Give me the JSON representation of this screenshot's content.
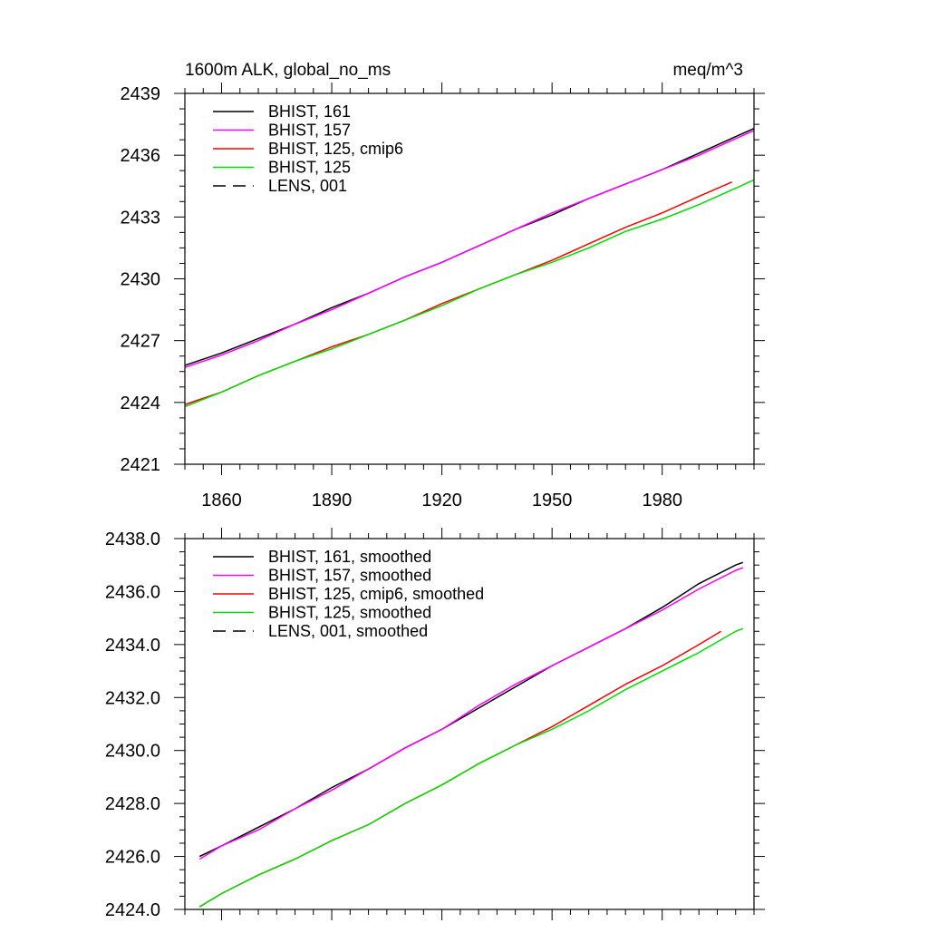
{
  "chart_data": [
    {
      "type": "line",
      "title": "1600m ALK, global_no_ms",
      "units": "meq/m^3",
      "xlabel": "",
      "ylabel": "",
      "xlim": [
        1850,
        2005
      ],
      "ylim": [
        2421,
        2439
      ],
      "xticks": [
        1860,
        1890,
        1920,
        1950,
        1980
      ],
      "xtick_labels": [
        "1860",
        "1890",
        "1920",
        "1950",
        "1980"
      ],
      "yticks": [
        2421,
        2424,
        2427,
        2430,
        2433,
        2436,
        2439
      ],
      "ytick_labels": [
        "2421",
        "2424",
        "2427",
        "2430",
        "2433",
        "2436",
        "2439"
      ],
      "grid": false,
      "legend_position": "top-left",
      "series": [
        {
          "name": "BHIST, 161",
          "color": "#000000",
          "dash": "solid",
          "x": [
            1850,
            1860,
            1870,
            1880,
            1890,
            1900,
            1910,
            1920,
            1930,
            1940,
            1950,
            1960,
            1970,
            1980,
            1990,
            2000,
            2005
          ],
          "y": [
            2425.8,
            2426.4,
            2427.1,
            2427.8,
            2428.6,
            2429.3,
            2430.1,
            2430.8,
            2431.6,
            2432.4,
            2433.1,
            2433.9,
            2434.6,
            2435.3,
            2436.1,
            2436.9,
            2437.3
          ]
        },
        {
          "name": "BHIST, 157",
          "color": "#ff00ff",
          "dash": "solid",
          "x": [
            1850,
            1860,
            1870,
            1880,
            1890,
            1900,
            1910,
            1920,
            1930,
            1940,
            1950,
            1960,
            1970,
            1980,
            1990,
            2000,
            2005
          ],
          "y": [
            2425.7,
            2426.3,
            2427.0,
            2427.8,
            2428.5,
            2429.3,
            2430.1,
            2430.8,
            2431.6,
            2432.4,
            2433.2,
            2433.9,
            2434.6,
            2435.3,
            2436.0,
            2436.8,
            2437.2
          ]
        },
        {
          "name": "BHIST, 125, cmip6",
          "color": "#ff0000",
          "dash": "solid",
          "x": [
            1850,
            1860,
            1870,
            1880,
            1890,
            1900,
            1910,
            1920,
            1930,
            1940,
            1950,
            1960,
            1970,
            1980,
            1990,
            1999
          ],
          "y": [
            2423.9,
            2424.5,
            2425.3,
            2426.0,
            2426.7,
            2427.3,
            2428.0,
            2428.8,
            2429.5,
            2430.2,
            2430.9,
            2431.7,
            2432.5,
            2433.2,
            2434.0,
            2434.7
          ]
        },
        {
          "name": "BHIST, 125",
          "color": "#00dd00",
          "dash": "solid",
          "x": [
            1850,
            1860,
            1870,
            1880,
            1890,
            1900,
            1910,
            1920,
            1930,
            1940,
            1950,
            1960,
            1970,
            1980,
            1990,
            2000,
            2005
          ],
          "y": [
            2423.8,
            2424.5,
            2425.3,
            2426.0,
            2426.6,
            2427.3,
            2428.0,
            2428.7,
            2429.5,
            2430.2,
            2430.8,
            2431.5,
            2432.3,
            2432.9,
            2433.6,
            2434.4,
            2434.8
          ]
        },
        {
          "name": "LENS, 001",
          "color": "#000000",
          "dash": "dashed",
          "x": [],
          "y": []
        }
      ]
    },
    {
      "type": "line",
      "title": "",
      "xlabel": "",
      "ylabel": "",
      "xlim": [
        1850,
        2005
      ],
      "ylim": [
        2424.0,
        2438.0
      ],
      "xticks": [
        1860,
        1890,
        1920,
        1950,
        1980
      ],
      "yticks": [
        2424.0,
        2426.0,
        2428.0,
        2430.0,
        2432.0,
        2434.0,
        2436.0,
        2438.0
      ],
      "ytick_labels": [
        "2424.0",
        "2426.0",
        "2428.0",
        "2430.0",
        "2432.0",
        "2434.0",
        "2436.0",
        "2438.0"
      ],
      "grid": false,
      "legend_position": "top-left",
      "series": [
        {
          "name": "BHIST, 161, smoothed",
          "color": "#000000",
          "dash": "solid",
          "x": [
            1854,
            1860,
            1870,
            1880,
            1890,
            1900,
            1910,
            1920,
            1930,
            1940,
            1950,
            1960,
            1970,
            1980,
            1990,
            2000,
            2002
          ],
          "y": [
            2426.0,
            2426.4,
            2427.1,
            2427.8,
            2428.6,
            2429.3,
            2430.1,
            2430.8,
            2431.6,
            2432.4,
            2433.2,
            2433.9,
            2434.6,
            2435.4,
            2436.3,
            2437.0,
            2437.1
          ]
        },
        {
          "name": "BHIST, 157, smoothed",
          "color": "#ff00ff",
          "dash": "solid",
          "x": [
            1854,
            1860,
            1870,
            1880,
            1890,
            1900,
            1910,
            1920,
            1930,
            1940,
            1950,
            1960,
            1970,
            1980,
            1990,
            2000,
            2002
          ],
          "y": [
            2425.9,
            2426.4,
            2427.0,
            2427.8,
            2428.5,
            2429.3,
            2430.1,
            2430.8,
            2431.7,
            2432.5,
            2433.2,
            2433.9,
            2434.6,
            2435.3,
            2436.1,
            2436.8,
            2436.9
          ]
        },
        {
          "name": "BHIST, 125, cmip6, smoothed",
          "color": "#ff0000",
          "dash": "solid",
          "x": [
            1854,
            1860,
            1870,
            1880,
            1890,
            1900,
            1910,
            1920,
            1930,
            1940,
            1950,
            1960,
            1970,
            1980,
            1990,
            1996
          ],
          "y": [
            2424.1,
            2424.6,
            2425.3,
            2425.9,
            2426.6,
            2427.2,
            2428.0,
            2428.7,
            2429.5,
            2430.2,
            2430.9,
            2431.7,
            2432.5,
            2433.2,
            2434.0,
            2434.5
          ]
        },
        {
          "name": "BHIST, 125, smoothed",
          "color": "#00dd00",
          "dash": "solid",
          "x": [
            1854,
            1860,
            1870,
            1880,
            1890,
            1900,
            1910,
            1920,
            1930,
            1940,
            1950,
            1960,
            1970,
            1980,
            1990,
            2000,
            2002
          ],
          "y": [
            2424.1,
            2424.6,
            2425.3,
            2425.9,
            2426.6,
            2427.2,
            2428.0,
            2428.7,
            2429.5,
            2430.2,
            2430.8,
            2431.5,
            2432.3,
            2433.0,
            2433.7,
            2434.5,
            2434.6
          ]
        },
        {
          "name": "LENS, 001, smoothed",
          "color": "#000000",
          "dash": "dashed",
          "x": [],
          "y": []
        }
      ]
    }
  ]
}
